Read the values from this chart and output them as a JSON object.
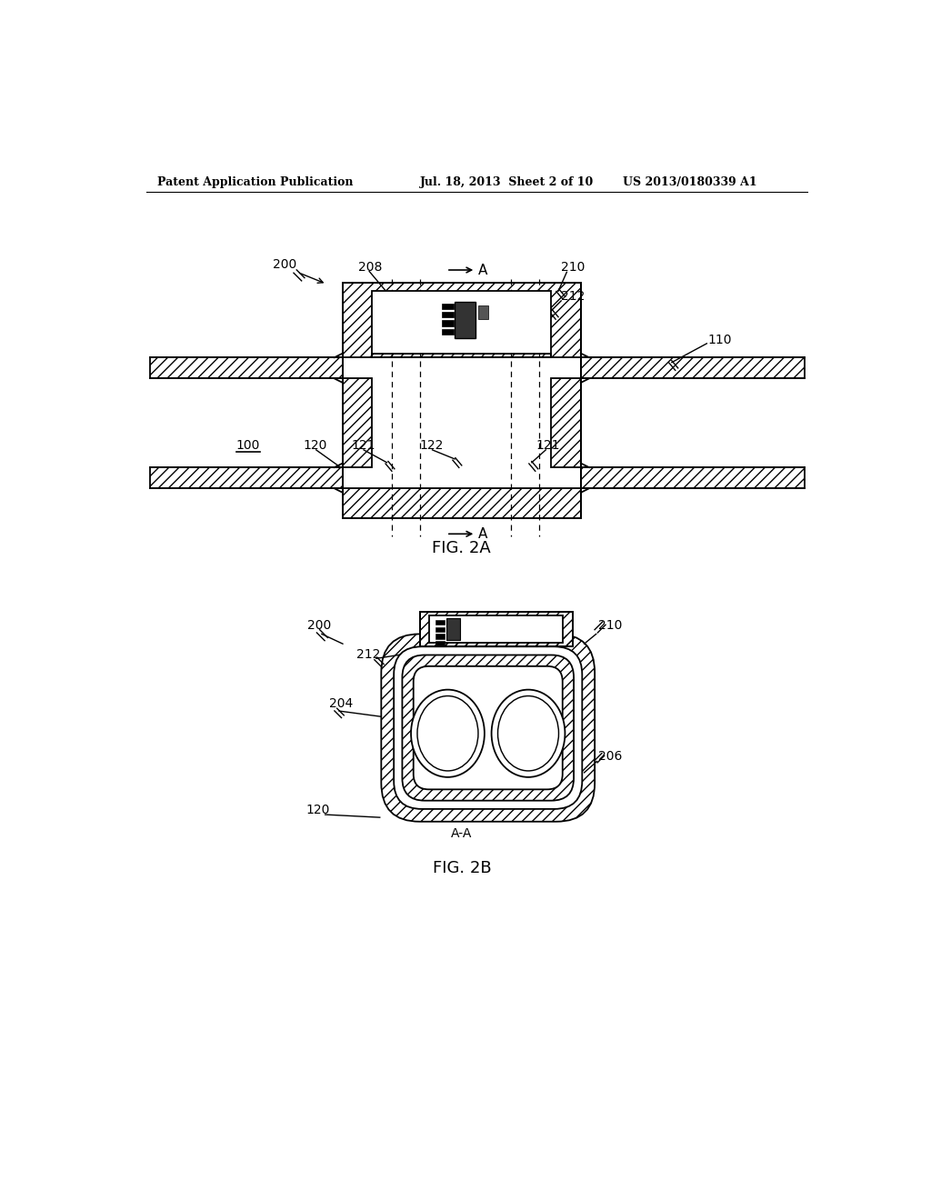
{
  "bg_color": "#ffffff",
  "header_left": "Patent Application Publication",
  "header_mid": "Jul. 18, 2013  Sheet 2 of 10",
  "header_right": "US 2013/0180339 A1",
  "fig2a_label": "FIG. 2A",
  "fig2b_label": "FIG. 2B",
  "line_color": "#000000"
}
